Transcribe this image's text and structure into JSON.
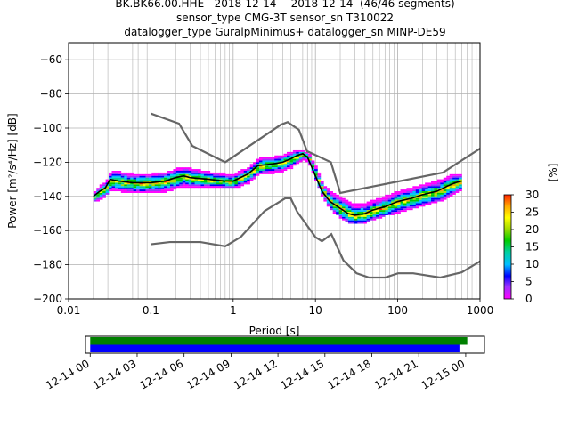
{
  "title_lines": [
    "BK.BK66.00.HHE   2018-12-14 -- 2018-12-14  (46/46 segments)",
    "sensor_type CMG-3T sensor_sn T310022",
    "datalogger_type GuralpMinimus+ datalogger_sn MINP-DE59"
  ],
  "chart_data": [
    {
      "type": "heatmap",
      "xlabel": "Period [s]",
      "ylabel": "Power [m²/s⁴/Hz] [dB]",
      "xscale": "log",
      "xlim": [
        0.01,
        1000
      ],
      "ylim": [
        -200,
        -50
      ],
      "xticks": [
        {
          "value": 0.01,
          "label": "0.01"
        },
        {
          "value": 0.1,
          "label": "0.1"
        },
        {
          "value": 1,
          "label": "1"
        },
        {
          "value": 10,
          "label": "10"
        },
        {
          "value": 100,
          "label": "100"
        },
        {
          "value": 1000,
          "label": "1000"
        }
      ],
      "yticks": [
        -60,
        -80,
        -100,
        -120,
        -140,
        -160,
        -180,
        -200
      ],
      "grid": true,
      "noise_models": {
        "color": "#666666",
        "high": {
          "x": [
            0.1,
            0.22,
            0.32,
            0.8,
            3.8,
            4.6,
            6.3,
            7.9,
            15.4,
            20,
            354.8,
            1000
          ],
          "y": [
            -91.5,
            -97.4,
            -110.5,
            -120,
            -98,
            -96.5,
            -101,
            -113.5,
            -120,
            -138,
            -126,
            -112
          ]
        },
        "low": {
          "x": [
            0.1,
            0.17,
            0.4,
            0.8,
            1.24,
            2.4,
            4.3,
            5,
            6,
            10,
            12,
            15.6,
            21.9,
            31.6,
            45,
            70,
            101,
            154,
            328,
            600,
            1000
          ],
          "y": [
            -168,
            -166.7,
            -166.7,
            -169.2,
            -163.7,
            -148.6,
            -141.1,
            -141.1,
            -149,
            -163.8,
            -166.2,
            -162.1,
            -177.5,
            -185,
            -187.5,
            -187.5,
            -185,
            -185,
            -187.5,
            -184.4,
            -178
          ]
        }
      },
      "mode_curve": {
        "color": "#000000",
        "x": [
          0.02,
          0.024,
          0.028,
          0.032,
          0.04,
          0.06,
          0.1,
          0.15,
          0.2,
          0.25,
          0.3,
          0.5,
          0.8,
          1,
          1.5,
          2,
          3,
          4,
          5,
          6,
          7,
          8,
          10,
          12,
          15,
          20,
          25,
          30,
          40,
          50,
          70,
          100,
          150,
          200,
          300,
          400,
          500,
          600
        ],
        "y": [
          -140,
          -137,
          -135,
          -130,
          -131,
          -132,
          -132,
          -131,
          -129,
          -128,
          -129,
          -130,
          -131,
          -131,
          -127,
          -122,
          -121,
          -120,
          -118,
          -116,
          -115,
          -117,
          -128,
          -137,
          -143,
          -147,
          -150,
          -151,
          -150,
          -148,
          -146,
          -143,
          -141,
          -139,
          -137,
          -134,
          -132,
          -131
        ]
      },
      "density_band": {
        "x": [
          0.02,
          0.024,
          0.028,
          0.032,
          0.04,
          0.06,
          0.1,
          0.15,
          0.2,
          0.25,
          0.3,
          0.5,
          0.8,
          1,
          1.5,
          2,
          3,
          4,
          5,
          6,
          7,
          8,
          10,
          12,
          15,
          20,
          25,
          30,
          40,
          50,
          70,
          100,
          150,
          200,
          300,
          400,
          500,
          600
        ],
        "upper": [
          -137,
          -133,
          -131,
          -125,
          -126,
          -127,
          -127,
          -126,
          -124,
          -123,
          -124,
          -126,
          -127,
          -127,
          -123,
          -118,
          -117,
          -116,
          -114,
          -113,
          -113,
          -115,
          -124,
          -133,
          -138,
          -141,
          -144,
          -145,
          -144,
          -142,
          -140,
          -137,
          -135,
          -133,
          -131,
          -128,
          -127,
          -127
        ],
        "lower": [
          -142,
          -140,
          -138,
          -135,
          -136,
          -137,
          -137,
          -136,
          -134,
          -133,
          -134,
          -134,
          -134,
          -134,
          -131,
          -126,
          -125,
          -124,
          -122,
          -119,
          -117,
          -119,
          -131,
          -140,
          -147,
          -152,
          -155,
          -155,
          -154,
          -152,
          -150,
          -148,
          -146,
          -144,
          -142,
          -139,
          -137,
          -135
        ]
      },
      "colorbar": {
        "label": "[%]",
        "ticks": [
          0,
          5,
          10,
          15,
          20,
          25,
          30
        ],
        "range": [
          0,
          30
        ],
        "colors": [
          "#ff00ff",
          "#9b30ff",
          "#0000ff",
          "#00bfff",
          "#00d0a0",
          "#00cc00",
          "#aadd00",
          "#ffff00",
          "#ffaa00",
          "#ff2200"
        ]
      }
    },
    {
      "type": "timeline",
      "xtick_labels": [
        "12-14 00",
        "12-14 03",
        "12-14 06",
        "12-14 09",
        "12-14 12",
        "12-14 15",
        "12-14 18",
        "12-14 21",
        "12-15 00"
      ],
      "xrange_hours": [
        -0.3,
        25.2
      ],
      "bars": [
        {
          "start_hours": 0,
          "end_hours": 24.1,
          "color": "#008000"
        },
        {
          "start_hours": 0,
          "end_hours": 23.6,
          "color": "#0000ff"
        }
      ]
    }
  ]
}
